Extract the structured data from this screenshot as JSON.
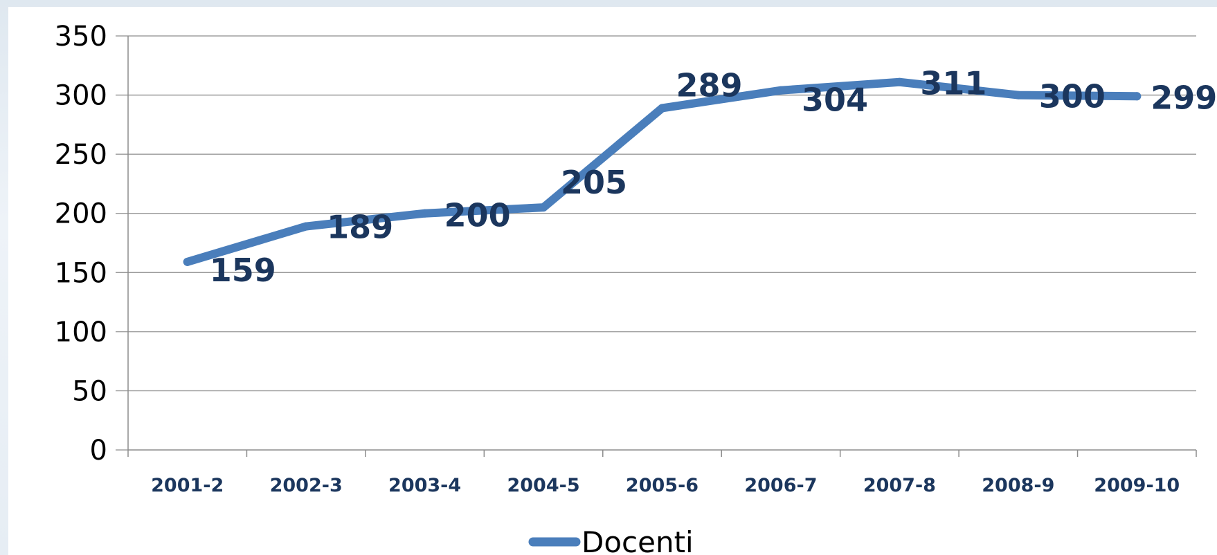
{
  "chart_data": {
    "type": "line",
    "title": "",
    "xlabel": "",
    "ylabel": "",
    "categories": [
      "2001-2",
      "2002-3",
      "2003-4",
      "2004-5",
      "2005-6",
      "2006-7",
      "2007-8",
      "2008-9",
      "2009-10"
    ],
    "series": [
      {
        "name": "Docenti",
        "values": [
          159,
          189,
          200,
          205,
          289,
          304,
          311,
          300,
          299
        ],
        "color": "#4a7ebb"
      }
    ],
    "data_labels": [
      "159",
      "189",
      "200",
      "205",
      "289",
      "304",
      "311",
      "300",
      "299"
    ],
    "ylim": [
      0,
      350
    ],
    "yticks": [
      0,
      50,
      100,
      150,
      200,
      250,
      300,
      350
    ],
    "ytick_labels": [
      "0",
      "50",
      "100",
      "150",
      "200",
      "250",
      "300",
      "350"
    ],
    "grid": true,
    "legend": "bottom"
  },
  "legend": {
    "label": "Docenti"
  },
  "colors": {
    "line": "#4a7ebb",
    "labels": "#1b365d",
    "grid": "#8c8c8c"
  }
}
